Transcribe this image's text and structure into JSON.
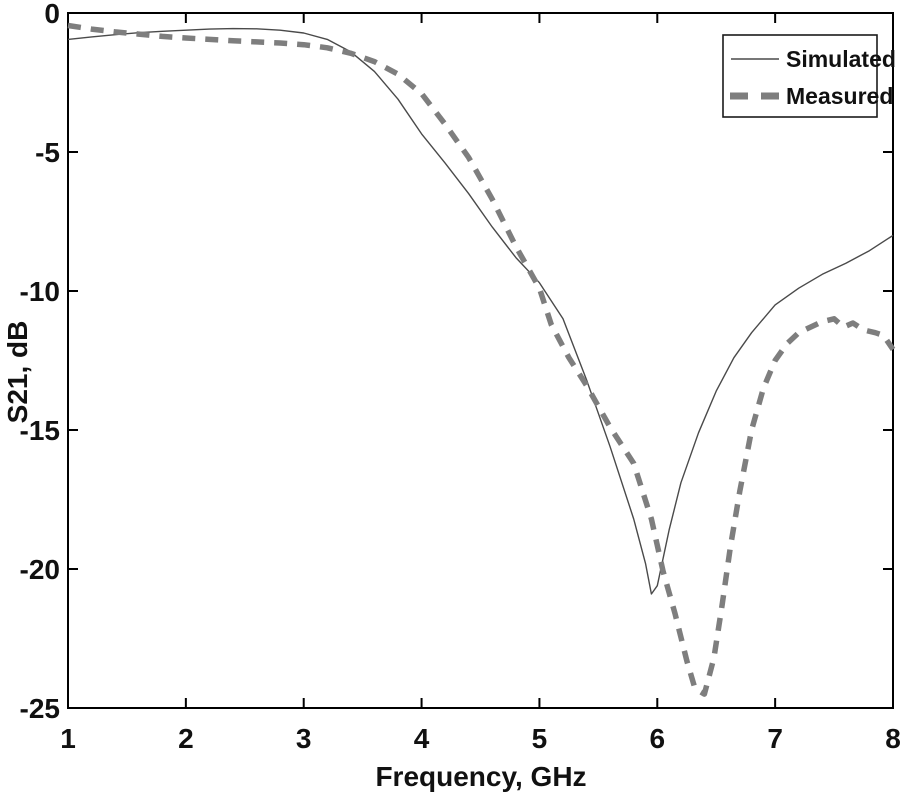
{
  "chart_data": {
    "type": "line",
    "title": "",
    "xlabel": "Frequency, GHz",
    "ylabel": "S21, dB",
    "xlim": [
      1,
      8
    ],
    "ylim": [
      -25,
      0
    ],
    "xticks": [
      1,
      2,
      3,
      4,
      5,
      6,
      7,
      8
    ],
    "yticks": [
      0,
      -5,
      -10,
      -15,
      -20,
      -25
    ],
    "grid": false,
    "background": "#ffffff",
    "axis_color": "#000000",
    "legend": {
      "position": "top-right",
      "border_color": "#1a1a1a",
      "background": "#ffffff"
    },
    "series": [
      {
        "name": "Simulated",
        "line_style": "solid",
        "color": "#4a4a4a",
        "width": 1.4,
        "points": [
          [
            1.0,
            -0.95
          ],
          [
            1.2,
            -0.86
          ],
          [
            1.4,
            -0.78
          ],
          [
            1.6,
            -0.71
          ],
          [
            1.8,
            -0.66
          ],
          [
            2.0,
            -0.62
          ],
          [
            2.2,
            -0.58
          ],
          [
            2.4,
            -0.56
          ],
          [
            2.6,
            -0.57
          ],
          [
            2.8,
            -0.62
          ],
          [
            3.0,
            -0.72
          ],
          [
            3.2,
            -0.95
          ],
          [
            3.4,
            -1.4
          ],
          [
            3.6,
            -2.1
          ],
          [
            3.8,
            -3.1
          ],
          [
            4.0,
            -4.35
          ],
          [
            4.2,
            -5.4
          ],
          [
            4.4,
            -6.5
          ],
          [
            4.6,
            -7.7
          ],
          [
            4.8,
            -8.8
          ],
          [
            5.0,
            -9.7
          ],
          [
            5.2,
            -11.0
          ],
          [
            5.4,
            -13.2
          ],
          [
            5.6,
            -15.6
          ],
          [
            5.8,
            -18.2
          ],
          [
            5.9,
            -19.8
          ],
          [
            5.95,
            -20.9
          ],
          [
            6.0,
            -20.6
          ],
          [
            6.1,
            -18.6
          ],
          [
            6.2,
            -16.9
          ],
          [
            6.35,
            -15.1
          ],
          [
            6.5,
            -13.6
          ],
          [
            6.65,
            -12.4
          ],
          [
            6.8,
            -11.5
          ],
          [
            7.0,
            -10.5
          ],
          [
            7.2,
            -9.9
          ],
          [
            7.4,
            -9.4
          ],
          [
            7.6,
            -9.0
          ],
          [
            7.8,
            -8.55
          ],
          [
            8.0,
            -8.0
          ]
        ]
      },
      {
        "name": "Measured",
        "line_style": "dashed",
        "color": "#7e7e7e",
        "width": 5.5,
        "points": [
          [
            1.0,
            -0.45
          ],
          [
            1.2,
            -0.58
          ],
          [
            1.4,
            -0.68
          ],
          [
            1.6,
            -0.76
          ],
          [
            1.8,
            -0.84
          ],
          [
            2.0,
            -0.9
          ],
          [
            2.2,
            -0.95
          ],
          [
            2.4,
            -1.0
          ],
          [
            2.6,
            -1.04
          ],
          [
            2.8,
            -1.08
          ],
          [
            3.0,
            -1.14
          ],
          [
            3.2,
            -1.25
          ],
          [
            3.4,
            -1.45
          ],
          [
            3.6,
            -1.75
          ],
          [
            3.8,
            -2.2
          ],
          [
            4.0,
            -2.9
          ],
          [
            4.2,
            -4.0
          ],
          [
            4.4,
            -5.2
          ],
          [
            4.6,
            -6.7
          ],
          [
            4.8,
            -8.4
          ],
          [
            5.0,
            -9.9
          ],
          [
            5.1,
            -11.2
          ],
          [
            5.25,
            -12.4
          ],
          [
            5.4,
            -13.4
          ],
          [
            5.6,
            -14.9
          ],
          [
            5.8,
            -16.2
          ],
          [
            5.95,
            -18.2
          ],
          [
            6.05,
            -20.1
          ],
          [
            6.15,
            -21.6
          ],
          [
            6.25,
            -23.3
          ],
          [
            6.32,
            -24.3
          ],
          [
            6.4,
            -24.5
          ],
          [
            6.48,
            -23.2
          ],
          [
            6.55,
            -21.3
          ],
          [
            6.62,
            -19.2
          ],
          [
            6.7,
            -17.2
          ],
          [
            6.8,
            -15.0
          ],
          [
            6.9,
            -13.5
          ],
          [
            7.0,
            -12.5
          ],
          [
            7.1,
            -11.9
          ],
          [
            7.2,
            -11.5
          ],
          [
            7.3,
            -11.3
          ],
          [
            7.4,
            -11.1
          ],
          [
            7.5,
            -11.0
          ],
          [
            7.58,
            -11.3
          ],
          [
            7.66,
            -11.15
          ],
          [
            7.75,
            -11.4
          ],
          [
            7.85,
            -11.5
          ],
          [
            7.92,
            -11.6
          ],
          [
            8.0,
            -12.1
          ]
        ]
      }
    ]
  }
}
